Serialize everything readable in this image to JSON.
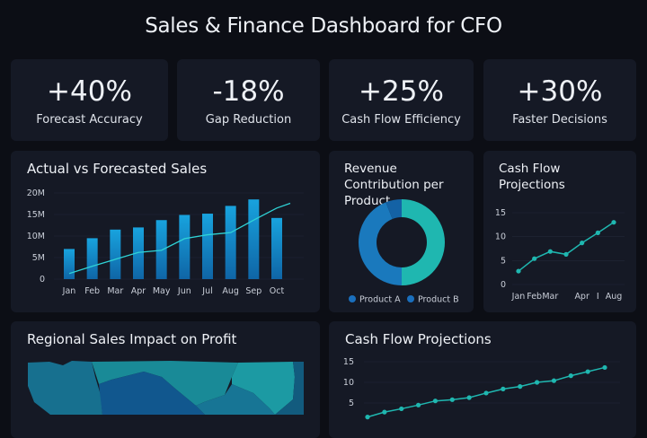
{
  "header": {
    "title": "Sales & Finance Dashboard for CFO"
  },
  "kpis": [
    {
      "value": "+40%",
      "label": "Forecast Accuracy"
    },
    {
      "value": "-18%",
      "label": "Gap Reduction"
    },
    {
      "value": "+25%",
      "label": "Cash Flow Efficiency"
    },
    {
      "value": "+30%",
      "label": "Faster Decisions"
    }
  ],
  "colors": {
    "bar": "#1690cf",
    "line": "#2fd3d6",
    "teal": "#1fb7b0",
    "blue": "#1a79bd",
    "dark_blue": "#1462a5",
    "background": "#0c0e15",
    "card": "#151925"
  },
  "chart_data": [
    {
      "type": "bar",
      "title": "Actual vs Forecasted Sales",
      "categories": [
        "Jan",
        "Feb",
        "Mar",
        "Apr",
        "May",
        "Jun",
        "Jul",
        "Aug",
        "Sep",
        "Oct"
      ],
      "yticks": [
        "0",
        "5M",
        "10M",
        "15M",
        "20M"
      ],
      "ylim": [
        0,
        20
      ],
      "series": [
        {
          "type": "bar",
          "values": [
            7,
            9.5,
            11.5,
            12,
            13.7,
            14.9,
            15.2,
            17,
            18.5,
            14.2
          ]
        },
        {
          "type": "line",
          "values": [
            1.3,
            3,
            4.6,
            6.2,
            6.7,
            9.4,
            10.3,
            10.8,
            13.7,
            16.5
          ]
        }
      ],
      "grid": true
    },
    {
      "type": "pie",
      "title": "Revenue Contribution per Product",
      "legend": [
        "Product A",
        "Product B"
      ],
      "slices": [
        {
          "name": "Product B",
          "value": 50,
          "color": "#1fb7b0"
        },
        {
          "name": "Product A",
          "value": 44,
          "color": "#1a79bd"
        },
        {
          "name": "Product A",
          "value": 6,
          "color": "#1462a5"
        }
      ]
    },
    {
      "type": "line",
      "title": "Cash Flow Projections",
      "categories": [
        "Jan",
        "Feb",
        "Mar",
        "",
        "Apr",
        "I",
        "Aug"
      ],
      "values": [
        2.8,
        5.4,
        6.9,
        6.3,
        8.7,
        10.8,
        13
      ],
      "yticks": [
        "0",
        "5",
        "10",
        "15"
      ],
      "ylim": [
        0,
        15
      ],
      "grid": true
    },
    {
      "type": "line",
      "title": "Cash Flow Projections",
      "values": [
        1.6,
        2.8,
        3.6,
        4.5,
        5.5,
        5.8,
        6.3,
        7.4,
        8.4,
        9.0,
        10.0,
        10.4,
        11.6,
        12.6,
        13.6
      ],
      "yticks": [
        "5",
        "10",
        "15"
      ],
      "ylim": [
        0,
        15
      ],
      "grid": true
    }
  ],
  "map": {
    "title": "Regional Sales Impact on Profit"
  }
}
